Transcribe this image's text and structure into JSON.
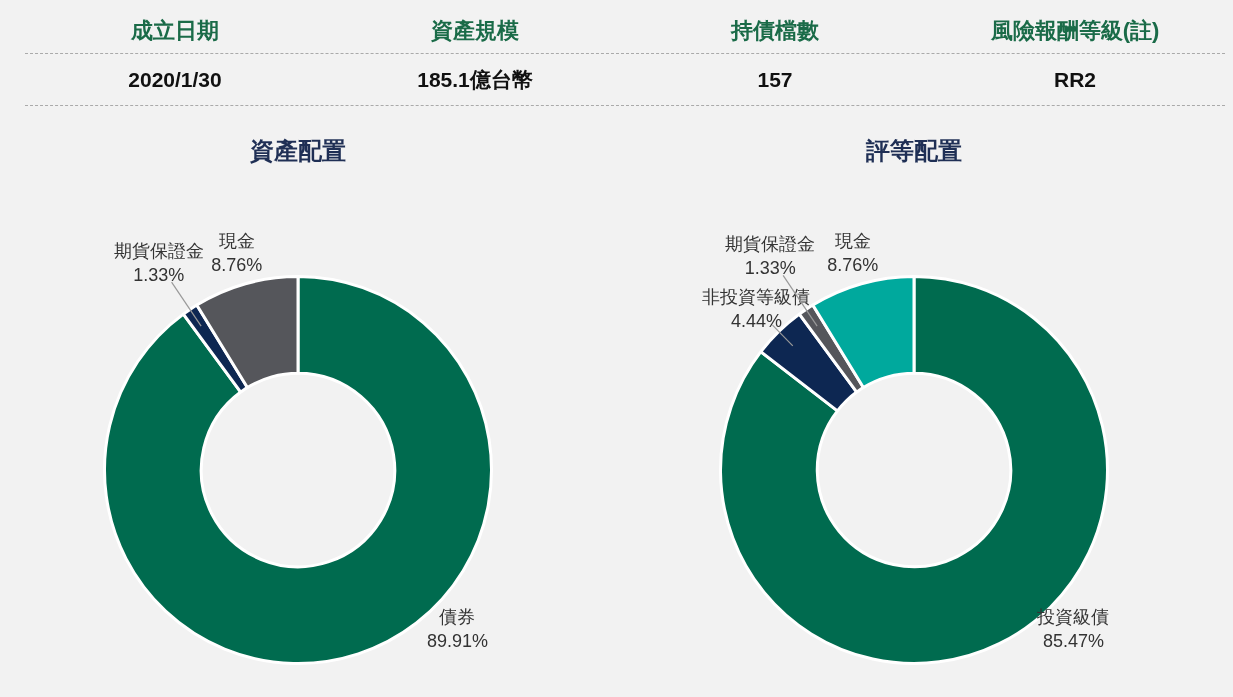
{
  "chart_data": [
    {
      "type": "other",
      "categories": [
        "成立日期",
        "資產規模",
        "持債檔數",
        "風險報酬等級(註)"
      ],
      "value_labels": [
        "2020/1/30",
        "185.1億台幣",
        "157",
        "RR2"
      ]
    },
    {
      "type": "donut",
      "title": "資產配置",
      "categories": [
        "債券",
        "期貨保證金",
        "現金"
      ],
      "values": [
        89.91,
        1.33,
        8.76
      ],
      "colors": [
        "#006b4f",
        "#0d2752",
        "#55565b"
      ],
      "value_labels": [
        "89.91%",
        "1.33%",
        "8.76%"
      ],
      "legend": false
    },
    {
      "type": "donut",
      "title": "評等配置",
      "categories": [
        "投資級債",
        "非投資等級債",
        "期貨保證金",
        "現金"
      ],
      "values": [
        85.47,
        4.44,
        1.33,
        8.76
      ],
      "colors": [
        "#006b4f",
        "#0d2752",
        "#55565b",
        "#00a99d"
      ],
      "value_labels": [
        "85.47%",
        "4.44%",
        "1.33%",
        "8.76%"
      ],
      "legend": false
    }
  ]
}
